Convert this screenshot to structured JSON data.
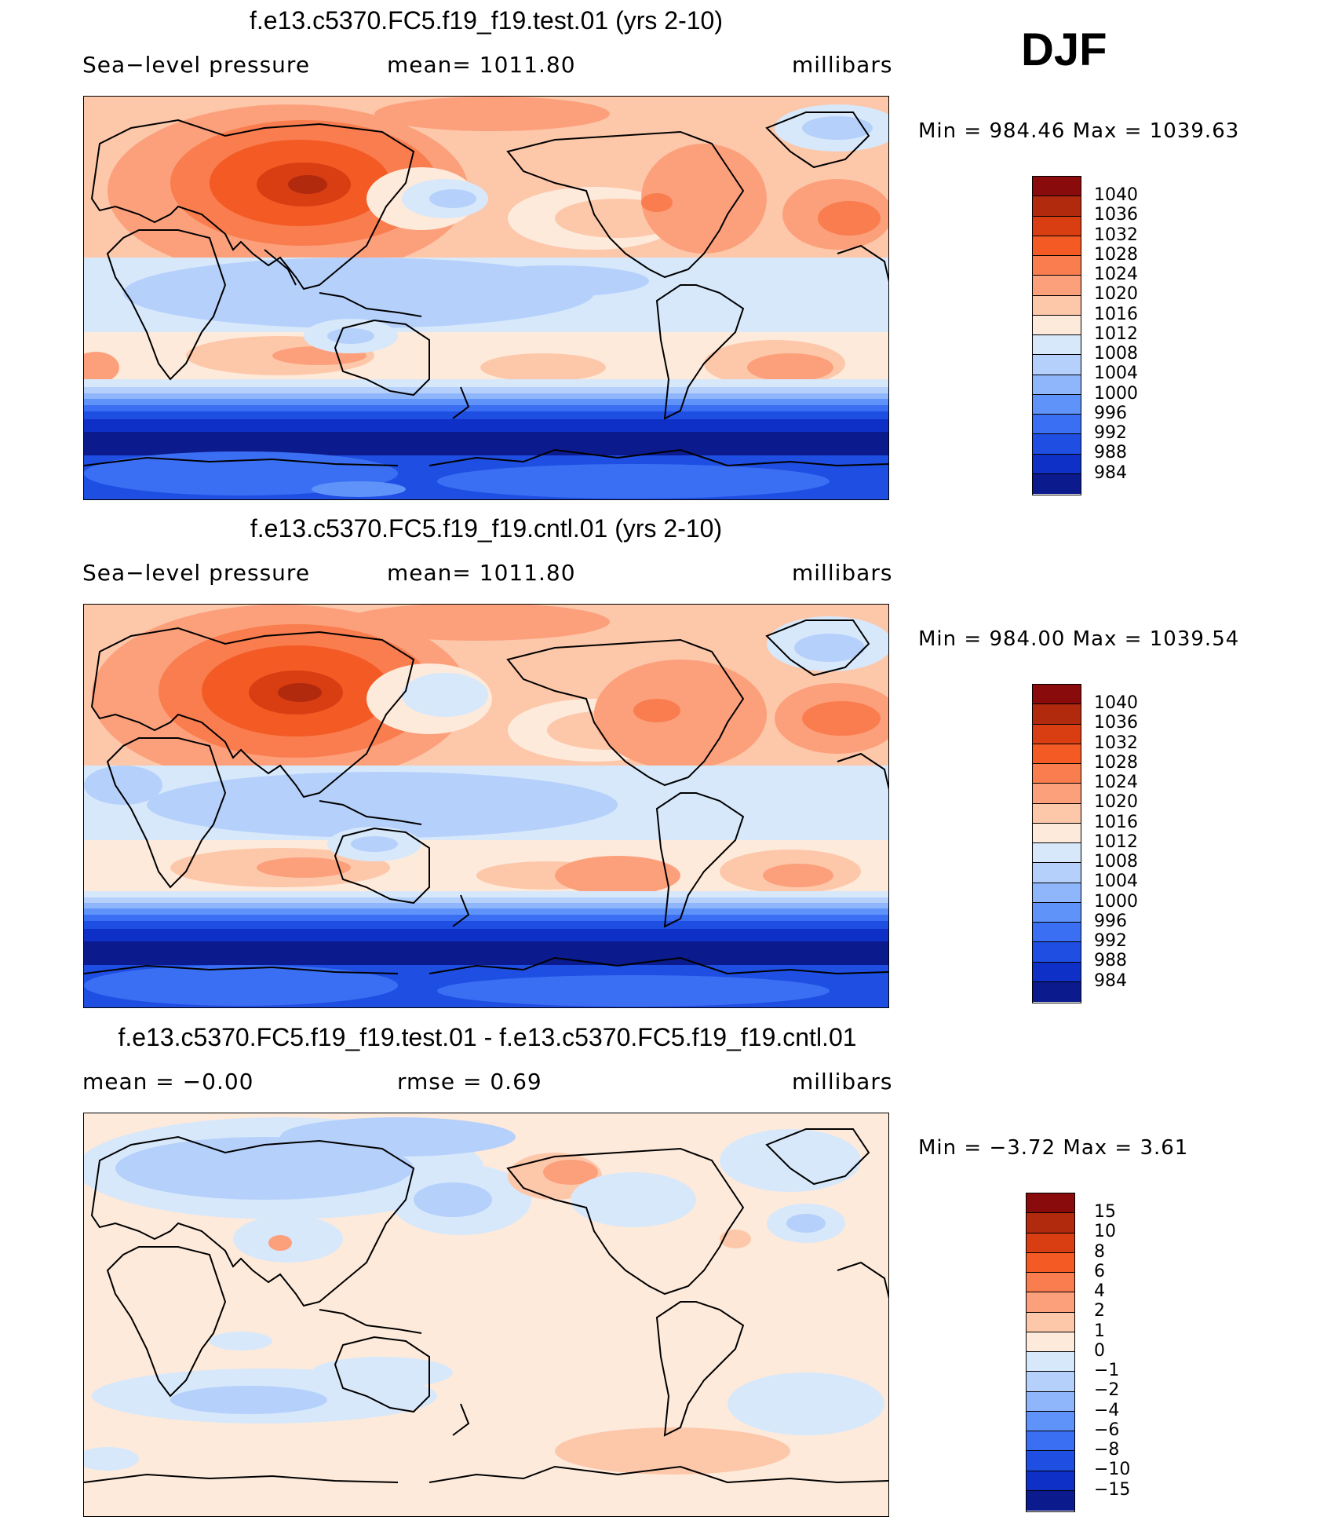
{
  "season": "DJF",
  "panels": [
    {
      "title": "f.e13.c5370.FC5.f19_f19.test.01 (yrs 2-10)",
      "sub_left": "Sea−level pressure",
      "sub_mid": "mean=  1011.80",
      "sub_right": "millibars",
      "minmax": "Min  =  984.46  Max  =  1039.63",
      "colorbar_labels": [
        "1040",
        "1036",
        "1032",
        "1028",
        "1024",
        "1020",
        "1016",
        "1012",
        "1008",
        "1004",
        "1000",
        "996",
        "992",
        "988",
        "984"
      ]
    },
    {
      "title": "f.e13.c5370.FC5.f19_f19.cntl.01 (yrs 2-10)",
      "sub_left": "Sea−level pressure",
      "sub_mid": "mean=  1011.80",
      "sub_right": "millibars",
      "minmax": "Min  =  984.00  Max  =  1039.54",
      "colorbar_labels": [
        "1040",
        "1036",
        "1032",
        "1028",
        "1024",
        "1020",
        "1016",
        "1012",
        "1008",
        "1004",
        "1000",
        "996",
        "992",
        "988",
        "984"
      ]
    },
    {
      "title": "f.e13.c5370.FC5.f19_f19.test.01 - f.e13.c5370.FC5.f19_f19.cntl.01",
      "sub_left": "mean  =    −0.00",
      "sub_mid": "rmse  =     0.69",
      "sub_right": "millibars",
      "minmax": "Min  =    −3.72  Max  =      3.61",
      "colorbar_labels": [
        "15",
        "10",
        "8",
        "6",
        "4",
        "2",
        "1",
        "0",
        "−1",
        "−2",
        "−4",
        "−6",
        "−8",
        "−10",
        "−15"
      ]
    }
  ],
  "colors": {
    "abs": [
      "#8a0b0b",
      "#b22a0e",
      "#d93d12",
      "#f45a24",
      "#f97d4f",
      "#fca07c",
      "#fdc7aa",
      "#fdeadb",
      "#d7e8fb",
      "#b5d0fb",
      "#8fb6fb",
      "#5f93f9",
      "#3b6ff3",
      "#1f4ee3",
      "#0e30c6",
      "#0b1a8c"
    ],
    "diff": [
      "#8a0b0b",
      "#b22a0e",
      "#d93d12",
      "#f45a24",
      "#f97d4f",
      "#fca07c",
      "#fdc7aa",
      "#fdeadb",
      "#d7e8fb",
      "#b5d0fb",
      "#8fb6fb",
      "#5f93f9",
      "#3b6ff3",
      "#1f4ee3",
      "#0e30c6",
      "#0b1a8c"
    ]
  }
}
